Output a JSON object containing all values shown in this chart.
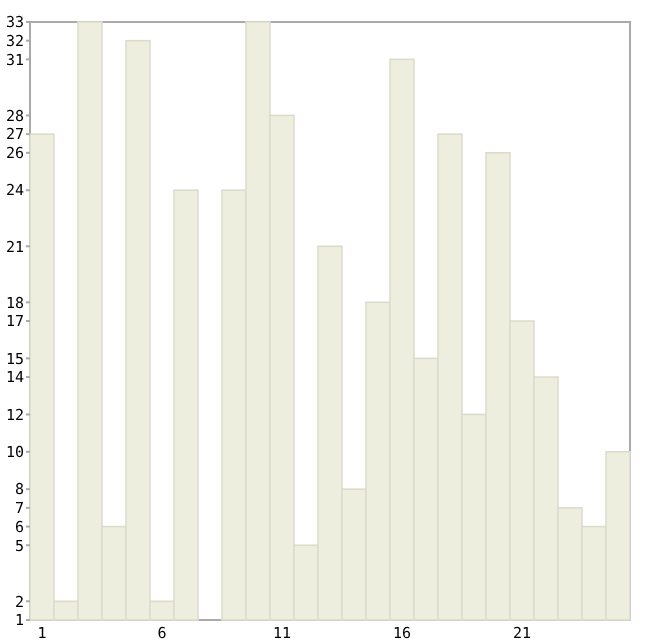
{
  "chart_data": {
    "type": "bar",
    "categories": [
      "1",
      null,
      null,
      null,
      null,
      "6",
      null,
      null,
      null,
      null,
      "11",
      null,
      null,
      null,
      null,
      "16",
      null,
      null,
      null,
      null,
      "21",
      null,
      null,
      null,
      null
    ],
    "values": [
      27,
      2,
      33,
      6,
      32,
      2,
      24,
      1,
      24,
      33,
      28,
      5,
      21,
      8,
      18,
      31,
      15,
      27,
      12,
      26,
      17,
      14,
      7,
      6,
      10
    ],
    "color": "#eeeedf",
    "ylim": [
      1,
      33
    ],
    "yticks": [
      1,
      2,
      5,
      6,
      7,
      8,
      10,
      12,
      14,
      15,
      17,
      18,
      21,
      24,
      26,
      27,
      28,
      31,
      32,
      33
    ],
    "grid": false
  }
}
